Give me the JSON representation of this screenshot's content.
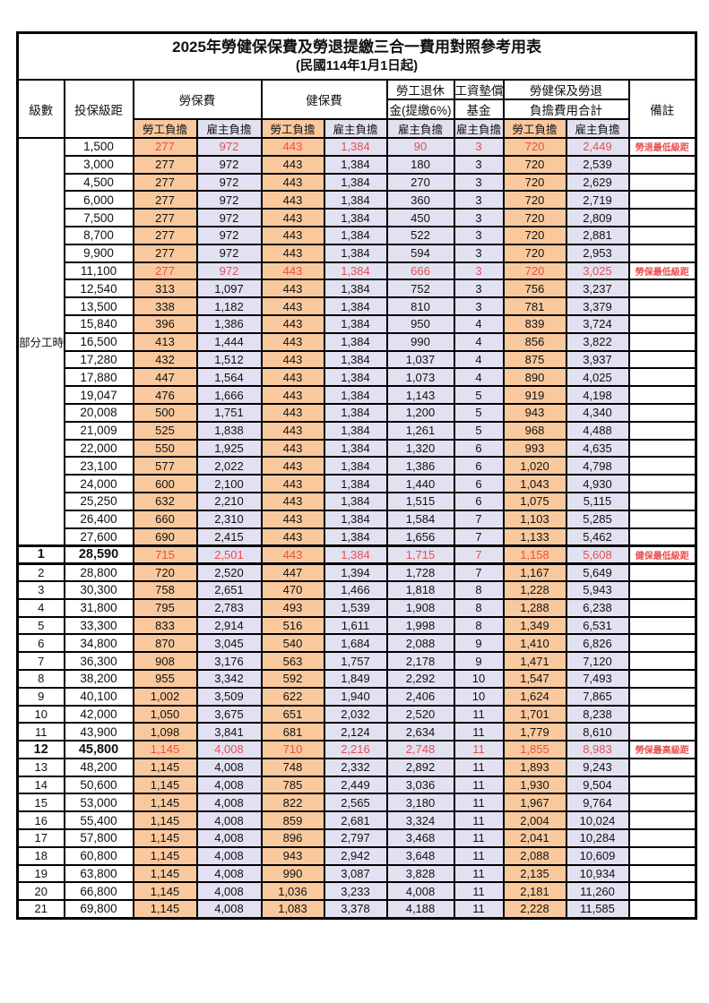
{
  "title": "2025年勞健保保費及勞退提繳三合一費用對照參考用表",
  "subtitle": "(民國114年1月1日起)",
  "header": {
    "level": "級數",
    "bracket": "投保級距",
    "labor_insurance": "勞保費",
    "health_insurance": "健保費",
    "pension_line1": "勞工退休",
    "pension_line2": "金(提繳6%)",
    "wage_fund_line1": "工資墊償",
    "wage_fund_line2": "基金",
    "total_line1": "勞健保及勞退",
    "total_line2": "負擔費用合計",
    "remark": "備註",
    "employee": "勞工負擔",
    "employer": "雇主負擔"
  },
  "part_time_label": "部分工時",
  "part_time_rowspan": 23,
  "colors": {
    "employee_bg": "#F9C99D",
    "employer_bg": "#E2E1F1",
    "highlight_red": "#E94E4E",
    "border": "#000000"
  },
  "rows": [
    {
      "level": "",
      "bracket": "1,500",
      "cells": [
        "277",
        "972",
        "443",
        "1,384",
        "90",
        "3",
        "720",
        "2,449"
      ],
      "remark": "勞退最低級距",
      "red": true
    },
    {
      "level": "",
      "bracket": "3,000",
      "cells": [
        "277",
        "972",
        "443",
        "1,384",
        "180",
        "3",
        "720",
        "2,539"
      ]
    },
    {
      "level": "",
      "bracket": "4,500",
      "cells": [
        "277",
        "972",
        "443",
        "1,384",
        "270",
        "3",
        "720",
        "2,629"
      ]
    },
    {
      "level": "",
      "bracket": "6,000",
      "cells": [
        "277",
        "972",
        "443",
        "1,384",
        "360",
        "3",
        "720",
        "2,719"
      ]
    },
    {
      "level": "",
      "bracket": "7,500",
      "cells": [
        "277",
        "972",
        "443",
        "1,384",
        "450",
        "3",
        "720",
        "2,809"
      ]
    },
    {
      "level": "",
      "bracket": "8,700",
      "cells": [
        "277",
        "972",
        "443",
        "1,384",
        "522",
        "3",
        "720",
        "2,881"
      ]
    },
    {
      "level": "",
      "bracket": "9,900",
      "cells": [
        "277",
        "972",
        "443",
        "1,384",
        "594",
        "3",
        "720",
        "2,953"
      ]
    },
    {
      "level": "",
      "bracket": "11,100",
      "cells": [
        "277",
        "972",
        "443",
        "1,384",
        "666",
        "3",
        "720",
        "3,025"
      ],
      "remark": "勞保最低級距",
      "red": true
    },
    {
      "level": "",
      "bracket": "12,540",
      "cells": [
        "313",
        "1,097",
        "443",
        "1,384",
        "752",
        "3",
        "756",
        "3,237"
      ]
    },
    {
      "level": "",
      "bracket": "13,500",
      "cells": [
        "338",
        "1,182",
        "443",
        "1,384",
        "810",
        "3",
        "781",
        "3,379"
      ]
    },
    {
      "level": "",
      "bracket": "15,840",
      "cells": [
        "396",
        "1,386",
        "443",
        "1,384",
        "950",
        "4",
        "839",
        "3,724"
      ]
    },
    {
      "level": "",
      "bracket": "16,500",
      "cells": [
        "413",
        "1,444",
        "443",
        "1,384",
        "990",
        "4",
        "856",
        "3,822"
      ]
    },
    {
      "level": "",
      "bracket": "17,280",
      "cells": [
        "432",
        "1,512",
        "443",
        "1,384",
        "1,037",
        "4",
        "875",
        "3,937"
      ]
    },
    {
      "level": "",
      "bracket": "17,880",
      "cells": [
        "447",
        "1,564",
        "443",
        "1,384",
        "1,073",
        "4",
        "890",
        "4,025"
      ]
    },
    {
      "level": "",
      "bracket": "19,047",
      "cells": [
        "476",
        "1,666",
        "443",
        "1,384",
        "1,143",
        "5",
        "919",
        "4,198"
      ]
    },
    {
      "level": "",
      "bracket": "20,008",
      "cells": [
        "500",
        "1,751",
        "443",
        "1,384",
        "1,200",
        "5",
        "943",
        "4,340"
      ]
    },
    {
      "level": "",
      "bracket": "21,009",
      "cells": [
        "525",
        "1,838",
        "443",
        "1,384",
        "1,261",
        "5",
        "968",
        "4,488"
      ]
    },
    {
      "level": "",
      "bracket": "22,000",
      "cells": [
        "550",
        "1,925",
        "443",
        "1,384",
        "1,320",
        "6",
        "993",
        "4,635"
      ]
    },
    {
      "level": "",
      "bracket": "23,100",
      "cells": [
        "577",
        "2,022",
        "443",
        "1,384",
        "1,386",
        "6",
        "1,020",
        "4,798"
      ]
    },
    {
      "level": "",
      "bracket": "24,000",
      "cells": [
        "600",
        "2,100",
        "443",
        "1,384",
        "1,440",
        "6",
        "1,043",
        "4,930"
      ]
    },
    {
      "level": "",
      "bracket": "25,250",
      "cells": [
        "632",
        "2,210",
        "443",
        "1,384",
        "1,515",
        "6",
        "1,075",
        "5,115"
      ]
    },
    {
      "level": "",
      "bracket": "26,400",
      "cells": [
        "660",
        "2,310",
        "443",
        "1,384",
        "1,584",
        "7",
        "1,103",
        "5,285"
      ]
    },
    {
      "level": "",
      "bracket": "27,600",
      "cells": [
        "690",
        "2,415",
        "443",
        "1,384",
        "1,656",
        "7",
        "1,133",
        "5,462"
      ]
    },
    {
      "level": "1",
      "bracket": "28,590",
      "cells": [
        "715",
        "2,501",
        "443",
        "1,384",
        "1,715",
        "7",
        "1,158",
        "5,608"
      ],
      "remark": "健保最低級距",
      "red": true,
      "bold": true
    },
    {
      "level": "2",
      "bracket": "28,800",
      "cells": [
        "720",
        "2,520",
        "447",
        "1,394",
        "1,728",
        "7",
        "1,167",
        "5,649"
      ]
    },
    {
      "level": "3",
      "bracket": "30,300",
      "cells": [
        "758",
        "2,651",
        "470",
        "1,466",
        "1,818",
        "8",
        "1,228",
        "5,943"
      ]
    },
    {
      "level": "4",
      "bracket": "31,800",
      "cells": [
        "795",
        "2,783",
        "493",
        "1,539",
        "1,908",
        "8",
        "1,288",
        "6,238"
      ]
    },
    {
      "level": "5",
      "bracket": "33,300",
      "cells": [
        "833",
        "2,914",
        "516",
        "1,611",
        "1,998",
        "8",
        "1,349",
        "6,531"
      ]
    },
    {
      "level": "6",
      "bracket": "34,800",
      "cells": [
        "870",
        "3,045",
        "540",
        "1,684",
        "2,088",
        "9",
        "1,410",
        "6,826"
      ]
    },
    {
      "level": "7",
      "bracket": "36,300",
      "cells": [
        "908",
        "3,176",
        "563",
        "1,757",
        "2,178",
        "9",
        "1,471",
        "7,120"
      ]
    },
    {
      "level": "8",
      "bracket": "38,200",
      "cells": [
        "955",
        "3,342",
        "592",
        "1,849",
        "2,292",
        "10",
        "1,547",
        "7,493"
      ]
    },
    {
      "level": "9",
      "bracket": "40,100",
      "cells": [
        "1,002",
        "3,509",
        "622",
        "1,940",
        "2,406",
        "10",
        "1,624",
        "7,865"
      ]
    },
    {
      "level": "10",
      "bracket": "42,000",
      "cells": [
        "1,050",
        "3,675",
        "651",
        "2,032",
        "2,520",
        "11",
        "1,701",
        "8,238"
      ]
    },
    {
      "level": "11",
      "bracket": "43,900",
      "cells": [
        "1,098",
        "3,841",
        "681",
        "2,124",
        "2,634",
        "11",
        "1,779",
        "8,610"
      ]
    },
    {
      "level": "12",
      "bracket": "45,800",
      "cells": [
        "1,145",
        "4,008",
        "710",
        "2,216",
        "2,748",
        "11",
        "1,855",
        "8,983"
      ],
      "remark": "勞保最高級距",
      "red": true,
      "bold": true
    },
    {
      "level": "13",
      "bracket": "48,200",
      "cells": [
        "1,145",
        "4,008",
        "748",
        "2,332",
        "2,892",
        "11",
        "1,893",
        "9,243"
      ]
    },
    {
      "level": "14",
      "bracket": "50,600",
      "cells": [
        "1,145",
        "4,008",
        "785",
        "2,449",
        "3,036",
        "11",
        "1,930",
        "9,504"
      ]
    },
    {
      "level": "15",
      "bracket": "53,000",
      "cells": [
        "1,145",
        "4,008",
        "822",
        "2,565",
        "3,180",
        "11",
        "1,967",
        "9,764"
      ]
    },
    {
      "level": "16",
      "bracket": "55,400",
      "cells": [
        "1,145",
        "4,008",
        "859",
        "2,681",
        "3,324",
        "11",
        "2,004",
        "10,024"
      ]
    },
    {
      "level": "17",
      "bracket": "57,800",
      "cells": [
        "1,145",
        "4,008",
        "896",
        "2,797",
        "3,468",
        "11",
        "2,041",
        "10,284"
      ]
    },
    {
      "level": "18",
      "bracket": "60,800",
      "cells": [
        "1,145",
        "4,008",
        "943",
        "2,942",
        "3,648",
        "11",
        "2,088",
        "10,609"
      ]
    },
    {
      "level": "19",
      "bracket": "63,800",
      "cells": [
        "1,145",
        "4,008",
        "990",
        "3,087",
        "3,828",
        "11",
        "2,135",
        "10,934"
      ]
    },
    {
      "level": "20",
      "bracket": "66,800",
      "cells": [
        "1,145",
        "4,008",
        "1,036",
        "3,233",
        "4,008",
        "11",
        "2,181",
        "11,260"
      ]
    },
    {
      "level": "21",
      "bracket": "69,800",
      "cells": [
        "1,145",
        "4,008",
        "1,083",
        "3,378",
        "4,188",
        "11",
        "2,228",
        "11,585"
      ]
    }
  ]
}
